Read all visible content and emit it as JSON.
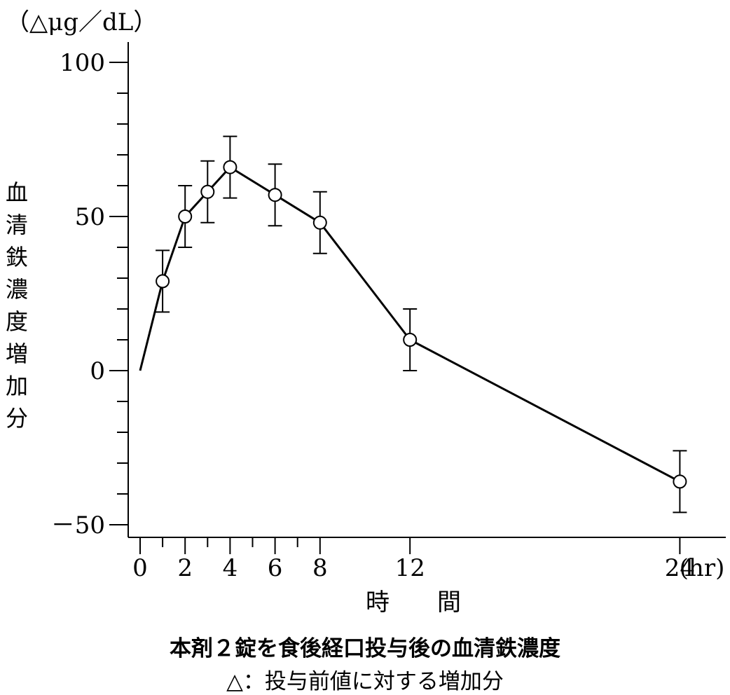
{
  "chart_data": {
    "type": "line",
    "unit_label": "（△μg／dL）",
    "ylabel": "血清鉄濃度増加分",
    "xlabel": "時　　間",
    "x_unit": "(hr)",
    "title": "本剤２錠を食後経口投与後の血清鉄濃度",
    "note": "△：投与前値に対する増加分",
    "ylim": [
      -50,
      100
    ],
    "yticks": [
      100,
      50,
      0,
      -50
    ],
    "y_minor_step": 10,
    "xlim": [
      0,
      26
    ],
    "xticks": [
      0,
      2,
      4,
      6,
      8,
      12,
      24
    ],
    "x_minor_ticks": [
      1,
      3,
      5,
      7
    ],
    "series": [
      {
        "x": [
          0,
          1,
          2,
          3,
          4,
          6,
          8,
          12,
          24
        ],
        "y": [
          0,
          29,
          50,
          58,
          66,
          57,
          48,
          10,
          -36
        ],
        "err": [
          null,
          10,
          10,
          10,
          10,
          10,
          10,
          10,
          10
        ],
        "markers": [
          false,
          true,
          true,
          true,
          true,
          true,
          true,
          true,
          true
        ]
      }
    ]
  }
}
